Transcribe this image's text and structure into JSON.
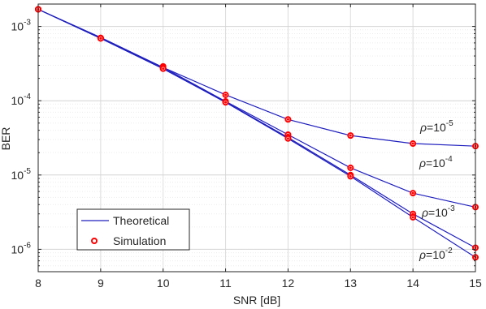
{
  "chart_data": {
    "type": "line",
    "xlabel": "SNR [dB]",
    "ylabel": "BER",
    "scale": {
      "x": "linear",
      "y": "log"
    },
    "xlim": [
      8,
      15
    ],
    "ylim": [
      5e-07,
      0.002
    ],
    "grid": true,
    "legend_position": "bottom-left",
    "x_ticks": [
      "8",
      "9",
      "10",
      "11",
      "12",
      "13",
      "14",
      "15"
    ],
    "y_ticks": [
      {
        "value": 0.001,
        "base": "10",
        "exp": "-3"
      },
      {
        "value": 0.0001,
        "base": "10",
        "exp": "-4"
      },
      {
        "value": 1e-05,
        "base": "10",
        "exp": "-5"
      },
      {
        "value": 1e-06,
        "base": "10",
        "exp": "-6"
      }
    ],
    "legend": [
      {
        "label": "Theoretical",
        "style": "line",
        "color": "#1f1fbf"
      },
      {
        "label": "Simulation",
        "style": "marker",
        "color": "#ff0000"
      }
    ],
    "x": [
      8,
      9,
      10,
      11,
      12,
      13,
      14,
      15
    ],
    "series": [
      {
        "annotation": {
          "sym": "ρ",
          "base": "=10",
          "exp": "-5"
        },
        "theoretical": [
          0.0017,
          0.00071,
          0.00028,
          0.00012,
          5.6e-05,
          3.4e-05,
          2.65e-05,
          2.45e-05
        ],
        "simulation": [
          0.0017,
          0.0007,
          0.00029,
          0.00012,
          5.6e-05,
          3.4e-05,
          2.65e-05,
          2.45e-05
        ]
      },
      {
        "annotation": {
          "sym": "ρ",
          "base": "=10",
          "exp": "-4"
        },
        "theoretical": [
          0.0017,
          0.0007,
          0.00028,
          9.8e-05,
          3.5e-05,
          1.25e-05,
          5.7e-06,
          3.7e-06
        ],
        "simulation": [
          0.0017,
          0.0007,
          0.00028,
          9.8e-05,
          3.5e-05,
          1.25e-05,
          5.7e-06,
          3.7e-06
        ]
      },
      {
        "annotation": {
          "sym": "ρ",
          "base": "=10",
          "exp": "-3"
        },
        "theoretical": [
          0.0017,
          0.00069,
          0.00027,
          9.6e-05,
          3.2e-05,
          1e-05,
          3e-06,
          1.05e-06
        ],
        "simulation": [
          0.0017,
          0.00069,
          0.00027,
          9.6e-05,
          3.2e-05,
          1e-05,
          3e-06,
          1.05e-06
        ]
      },
      {
        "annotation": {
          "sym": "ρ",
          "base": "=10",
          "exp": "-2"
        },
        "theoretical": [
          0.0017,
          0.00069,
          0.00027,
          9.5e-05,
          3.1e-05,
          9.6e-06,
          2.7e-06,
          7.8e-07
        ],
        "simulation": [
          0.0017,
          0.00069,
          0.00027,
          9.5e-05,
          3.1e-05,
          9.6e-06,
          2.7e-06,
          7.8e-07
        ]
      }
    ]
  }
}
